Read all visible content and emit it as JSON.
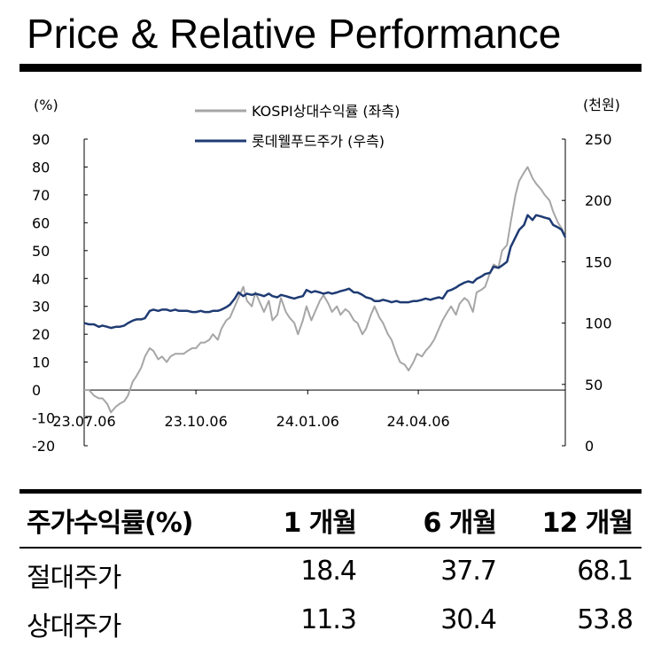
{
  "page": {
    "title": "Price & Relative Performance"
  },
  "chart_data": {
    "type": "line",
    "left_axis": {
      "unit_label": "(%)",
      "ticks": [
        90,
        80,
        70,
        60,
        50,
        40,
        30,
        20,
        10,
        0,
        -10,
        -20
      ],
      "range": [
        -20,
        90
      ]
    },
    "right_axis": {
      "unit_label": "(천원)",
      "ticks": [
        250,
        200,
        150,
        100,
        50,
        0
      ],
      "range": [
        0,
        250
      ]
    },
    "x_ticks": [
      {
        "label": "23.07.06",
        "date": "2023-07-06"
      },
      {
        "label": "23.10.06",
        "date": "2023-10-06"
      },
      {
        "label": "24.01.06",
        "date": "2024-01-06"
      },
      {
        "label": "24.04.06",
        "date": "2024-04-06"
      }
    ],
    "x_range": [
      "2023-07-06",
      "2024-08-05"
    ],
    "grid": false,
    "legend_placement": "top-center",
    "series": [
      {
        "name": "KOSPI상대수익률 (좌측)",
        "axis": "left",
        "color": "#a6a6a6",
        "points": [
          [
            "2023-07-06",
            0
          ],
          [
            "2023-07-10",
            0
          ],
          [
            "2023-07-14",
            -2
          ],
          [
            "2023-07-18",
            -3
          ],
          [
            "2023-07-21",
            -3
          ],
          [
            "2023-07-25",
            -5
          ],
          [
            "2023-07-28",
            -8
          ],
          [
            "2023-08-01",
            -6
          ],
          [
            "2023-08-04",
            -5
          ],
          [
            "2023-08-08",
            -4
          ],
          [
            "2023-08-11",
            -2
          ],
          [
            "2023-08-15",
            3
          ],
          [
            "2023-08-18",
            5
          ],
          [
            "2023-08-22",
            8
          ],
          [
            "2023-08-25",
            12
          ],
          [
            "2023-08-29",
            15
          ],
          [
            "2023-09-01",
            14
          ],
          [
            "2023-09-05",
            11
          ],
          [
            "2023-09-08",
            12
          ],
          [
            "2023-09-12",
            10
          ],
          [
            "2023-09-15",
            12
          ],
          [
            "2023-09-19",
            13
          ],
          [
            "2023-09-22",
            13
          ],
          [
            "2023-09-26",
            13
          ],
          [
            "2023-09-29",
            14
          ],
          [
            "2023-10-03",
            15
          ],
          [
            "2023-10-06",
            15
          ],
          [
            "2023-10-10",
            17
          ],
          [
            "2023-10-13",
            17
          ],
          [
            "2023-10-17",
            18
          ],
          [
            "2023-10-20",
            20
          ],
          [
            "2023-10-24",
            18
          ],
          [
            "2023-10-27",
            22
          ],
          [
            "2023-10-31",
            25
          ],
          [
            "2023-11-03",
            26
          ],
          [
            "2023-11-07",
            30
          ],
          [
            "2023-11-10",
            33
          ],
          [
            "2023-11-14",
            37
          ],
          [
            "2023-11-17",
            32
          ],
          [
            "2023-11-21",
            30
          ],
          [
            "2023-11-24",
            35
          ],
          [
            "2023-11-28",
            31
          ],
          [
            "2023-12-01",
            28
          ],
          [
            "2023-12-05",
            32
          ],
          [
            "2023-12-08",
            25
          ],
          [
            "2023-12-12",
            27
          ],
          [
            "2023-12-15",
            33
          ],
          [
            "2023-12-19",
            28
          ],
          [
            "2023-12-22",
            26
          ],
          [
            "2023-12-26",
            24
          ],
          [
            "2023-12-29",
            20
          ],
          [
            "2024-01-02",
            25
          ],
          [
            "2024-01-05",
            30
          ],
          [
            "2024-01-09",
            25
          ],
          [
            "2024-01-12",
            28
          ],
          [
            "2024-01-16",
            32
          ],
          [
            "2024-01-19",
            34
          ],
          [
            "2024-01-23",
            31
          ],
          [
            "2024-01-26",
            28
          ],
          [
            "2024-01-30",
            30
          ],
          [
            "2024-02-02",
            27
          ],
          [
            "2024-02-06",
            29
          ],
          [
            "2024-02-09",
            28
          ],
          [
            "2024-02-13",
            25
          ],
          [
            "2024-02-16",
            24
          ],
          [
            "2024-02-20",
            20
          ],
          [
            "2024-02-23",
            22
          ],
          [
            "2024-02-27",
            27
          ],
          [
            "2024-03-01",
            30
          ],
          [
            "2024-03-05",
            26
          ],
          [
            "2024-03-08",
            24
          ],
          [
            "2024-03-12",
            20
          ],
          [
            "2024-03-15",
            18
          ],
          [
            "2024-03-19",
            13
          ],
          [
            "2024-03-22",
            10
          ],
          [
            "2024-03-26",
            9
          ],
          [
            "2024-03-29",
            7
          ],
          [
            "2024-04-02",
            10
          ],
          [
            "2024-04-05",
            13
          ],
          [
            "2024-04-09",
            12
          ],
          [
            "2024-04-12",
            14
          ],
          [
            "2024-04-16",
            16
          ],
          [
            "2024-04-19",
            18
          ],
          [
            "2024-04-23",
            22
          ],
          [
            "2024-04-26",
            25
          ],
          [
            "2024-04-30",
            28
          ],
          [
            "2024-05-03",
            30
          ],
          [
            "2024-05-07",
            27
          ],
          [
            "2024-05-10",
            31
          ],
          [
            "2024-05-14",
            33
          ],
          [
            "2024-05-17",
            32
          ],
          [
            "2024-05-21",
            28
          ],
          [
            "2024-05-24",
            35
          ],
          [
            "2024-05-28",
            36
          ],
          [
            "2024-05-31",
            37
          ],
          [
            "2024-06-04",
            42
          ],
          [
            "2024-06-07",
            45
          ],
          [
            "2024-06-11",
            44
          ],
          [
            "2024-06-14",
            50
          ],
          [
            "2024-06-18",
            52
          ],
          [
            "2024-06-21",
            60
          ],
          [
            "2024-06-25",
            70
          ],
          [
            "2024-06-28",
            75
          ],
          [
            "2024-07-02",
            78
          ],
          [
            "2024-07-05",
            80
          ],
          [
            "2024-07-09",
            76
          ],
          [
            "2024-07-12",
            74
          ],
          [
            "2024-07-16",
            72
          ],
          [
            "2024-07-19",
            70
          ],
          [
            "2024-07-23",
            68
          ],
          [
            "2024-07-26",
            64
          ],
          [
            "2024-07-30",
            60
          ],
          [
            "2024-08-02",
            58
          ],
          [
            "2024-08-05",
            55
          ]
        ]
      },
      {
        "name": "롯데웰푸드주가 (우측)",
        "axis": "right",
        "color": "#1f3b73",
        "points": [
          [
            "2023-07-06",
            100
          ],
          [
            "2023-07-10",
            99
          ],
          [
            "2023-07-14",
            99
          ],
          [
            "2023-07-18",
            97
          ],
          [
            "2023-07-21",
            98
          ],
          [
            "2023-07-25",
            97
          ],
          [
            "2023-07-28",
            96
          ],
          [
            "2023-08-01",
            97
          ],
          [
            "2023-08-04",
            97
          ],
          [
            "2023-08-08",
            98
          ],
          [
            "2023-08-11",
            100
          ],
          [
            "2023-08-15",
            102
          ],
          [
            "2023-08-18",
            103
          ],
          [
            "2023-08-22",
            103
          ],
          [
            "2023-08-25",
            104
          ],
          [
            "2023-08-29",
            110
          ],
          [
            "2023-09-01",
            111
          ],
          [
            "2023-09-05",
            110
          ],
          [
            "2023-09-08",
            111
          ],
          [
            "2023-09-12",
            111
          ],
          [
            "2023-09-15",
            110
          ],
          [
            "2023-09-19",
            111
          ],
          [
            "2023-09-22",
            110
          ],
          [
            "2023-09-26",
            110
          ],
          [
            "2023-09-29",
            110
          ],
          [
            "2023-10-03",
            109
          ],
          [
            "2023-10-06",
            109
          ],
          [
            "2023-10-10",
            110
          ],
          [
            "2023-10-13",
            109
          ],
          [
            "2023-10-17",
            109
          ],
          [
            "2023-10-20",
            110
          ],
          [
            "2023-10-24",
            110
          ],
          [
            "2023-10-27",
            111
          ],
          [
            "2023-10-31",
            113
          ],
          [
            "2023-11-03",
            115
          ],
          [
            "2023-11-07",
            120
          ],
          [
            "2023-11-10",
            125
          ],
          [
            "2023-11-14",
            122
          ],
          [
            "2023-11-17",
            124
          ],
          [
            "2023-11-21",
            123
          ],
          [
            "2023-11-24",
            124
          ],
          [
            "2023-11-28",
            123
          ],
          [
            "2023-12-01",
            122
          ],
          [
            "2023-12-05",
            124
          ],
          [
            "2023-12-08",
            122
          ],
          [
            "2023-12-12",
            121
          ],
          [
            "2023-12-15",
            123
          ],
          [
            "2023-12-19",
            122
          ],
          [
            "2023-12-22",
            121
          ],
          [
            "2023-12-26",
            120
          ],
          [
            "2023-12-29",
            121
          ],
          [
            "2024-01-02",
            122
          ],
          [
            "2024-01-05",
            127
          ],
          [
            "2024-01-09",
            125
          ],
          [
            "2024-01-12",
            126
          ],
          [
            "2024-01-16",
            125
          ],
          [
            "2024-01-19",
            124
          ],
          [
            "2024-01-23",
            125
          ],
          [
            "2024-01-26",
            124
          ],
          [
            "2024-01-30",
            125
          ],
          [
            "2024-02-02",
            126
          ],
          [
            "2024-02-06",
            127
          ],
          [
            "2024-02-09",
            128
          ],
          [
            "2024-02-13",
            125
          ],
          [
            "2024-02-16",
            125
          ],
          [
            "2024-02-20",
            123
          ],
          [
            "2024-02-23",
            121
          ],
          [
            "2024-02-27",
            120
          ],
          [
            "2024-03-01",
            118
          ],
          [
            "2024-03-05",
            118
          ],
          [
            "2024-03-08",
            119
          ],
          [
            "2024-03-12",
            118
          ],
          [
            "2024-03-15",
            117
          ],
          [
            "2024-03-19",
            118
          ],
          [
            "2024-03-22",
            117
          ],
          [
            "2024-03-26",
            117
          ],
          [
            "2024-03-29",
            117
          ],
          [
            "2024-04-02",
            118
          ],
          [
            "2024-04-05",
            118
          ],
          [
            "2024-04-09",
            119
          ],
          [
            "2024-04-12",
            120
          ],
          [
            "2024-04-16",
            119
          ],
          [
            "2024-04-19",
            120
          ],
          [
            "2024-04-23",
            121
          ],
          [
            "2024-04-26",
            120
          ],
          [
            "2024-04-30",
            126
          ],
          [
            "2024-05-03",
            127
          ],
          [
            "2024-05-07",
            129
          ],
          [
            "2024-05-10",
            131
          ],
          [
            "2024-05-14",
            133
          ],
          [
            "2024-05-17",
            134
          ],
          [
            "2024-05-21",
            133
          ],
          [
            "2024-05-24",
            136
          ],
          [
            "2024-05-28",
            138
          ],
          [
            "2024-05-31",
            140
          ],
          [
            "2024-06-04",
            141
          ],
          [
            "2024-06-07",
            146
          ],
          [
            "2024-06-11",
            145
          ],
          [
            "2024-06-14",
            147
          ],
          [
            "2024-06-18",
            150
          ],
          [
            "2024-06-21",
            162
          ],
          [
            "2024-06-25",
            170
          ],
          [
            "2024-06-28",
            176
          ],
          [
            "2024-07-02",
            180
          ],
          [
            "2024-07-05",
            188
          ],
          [
            "2024-07-09",
            184
          ],
          [
            "2024-07-12",
            188
          ],
          [
            "2024-07-16",
            187
          ],
          [
            "2024-07-19",
            186
          ],
          [
            "2024-07-23",
            185
          ],
          [
            "2024-07-26",
            180
          ],
          [
            "2024-07-30",
            178
          ],
          [
            "2024-08-02",
            176
          ],
          [
            "2024-08-05",
            170
          ]
        ]
      }
    ]
  },
  "returns_table": {
    "header": [
      "주가수익률(%)",
      "1 개월",
      "6 개월",
      "12 개월"
    ],
    "rows": [
      [
        "절대주가",
        "18.4",
        "37.7",
        "68.1"
      ],
      [
        "상대주가",
        "11.3",
        "30.4",
        "53.8"
      ]
    ]
  }
}
